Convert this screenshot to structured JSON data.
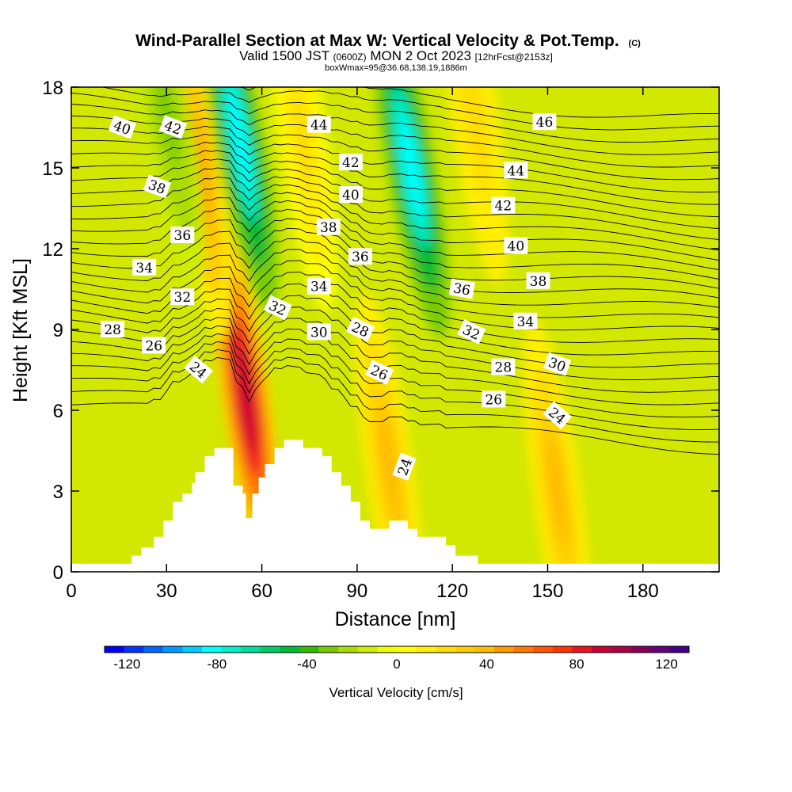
{
  "title": {
    "main": "Wind-Parallel Section at Max W: Vertical Velocity & Pot.Temp.",
    "copyright": "(C)",
    "valid_prefix": "Valid 1500 JST",
    "utc": "(0600Z)",
    "valid_date": "MON 2 Oct 2023",
    "forecast": "[12hrFcst@2153z]",
    "box": "boxWmax=95@36.68,138.19,1886m"
  },
  "colors": {
    "terrain": "#ffffff",
    "contour": "#000000",
    "colorbar": [
      "#0000ff",
      "#0033ff",
      "#0066ff",
      "#0099ff",
      "#00ccff",
      "#00ffff",
      "#00eecc",
      "#00dd99",
      "#00cc66",
      "#00bb33",
      "#33bb00",
      "#77cc00",
      "#aadd00",
      "#ccee00",
      "#eeff00",
      "#ffff00",
      "#ffee00",
      "#ffdd00",
      "#ffcc00",
      "#ffbb00",
      "#ff9900",
      "#ff7700",
      "#ff5500",
      "#ff3300",
      "#ee1122",
      "#cc0033",
      "#aa0044",
      "#880055",
      "#660077",
      "#440088"
    ]
  },
  "chart_data": {
    "type": "heatmap",
    "title": "Wind-Parallel Section at Max W: Vertical Velocity & Pot.Temp.",
    "xlabel": "Distance [nm]",
    "ylabel": "Height [Kft MSL]",
    "xlim": [
      0,
      204
    ],
    "ylim": [
      0,
      18
    ],
    "x_ticks": [
      "0",
      "30",
      "60",
      "90",
      "120",
      "150",
      "180"
    ],
    "y_ticks": [
      "0",
      "3",
      "6",
      "9",
      "12",
      "15",
      "18"
    ],
    "colorbar": {
      "label": "Vertical Velocity [cm/s]",
      "range": [
        -130,
        130
      ],
      "ticks": [
        "-120",
        "-80",
        "-40",
        "0",
        "40",
        "80",
        "120"
      ],
      "tick_values": [
        -120,
        -80,
        -40,
        0,
        40,
        80,
        120
      ]
    },
    "updrafts": [
      {
        "x": 55,
        "y": 6.5,
        "w": 95
      },
      {
        "x": 40,
        "y": 15,
        "w": 45
      },
      {
        "x": 100,
        "y": 4,
        "w": 40
      },
      {
        "x": 153,
        "y": 3,
        "w": 40
      },
      {
        "x": 73,
        "y": 16,
        "w": 20
      },
      {
        "x": 127,
        "y": 17,
        "w": 25
      }
    ],
    "downdrafts": [
      {
        "x": 53,
        "y": 16,
        "w": -85
      },
      {
        "x": 107,
        "y": 15,
        "w": -85
      },
      {
        "x": 30,
        "y": 17,
        "w": -30
      }
    ],
    "terrain": {
      "x": [
        0,
        16,
        19,
        22,
        26,
        29,
        32,
        35,
        38,
        39,
        42,
        45,
        48,
        51,
        54,
        55,
        56,
        57,
        58,
        59,
        61,
        64,
        67,
        70,
        73,
        76,
        79,
        82,
        85,
        88,
        91,
        94,
        97,
        100,
        103,
        106,
        109,
        112,
        115,
        118,
        121,
        124,
        128,
        130,
        204
      ],
      "height": [
        0.3,
        0.3,
        0.6,
        0.9,
        1.3,
        1.9,
        2.6,
        2.9,
        3.3,
        3.7,
        4.3,
        4.6,
        4.6,
        3.2,
        2.9,
        2.0,
        2.0,
        2.9,
        2.9,
        3.5,
        4.0,
        4.6,
        4.9,
        4.9,
        4.6,
        4.6,
        4.3,
        3.7,
        3.2,
        2.6,
        1.9,
        1.6,
        1.6,
        1.9,
        1.9,
        1.6,
        1.3,
        1.3,
        1.3,
        1.0,
        0.6,
        0.6,
        0.3,
        0.3,
        0.3
      ]
    },
    "contour_labels": [
      {
        "text": "40",
        "x": 16,
        "y": 16.5,
        "rot": 20
      },
      {
        "text": "42",
        "x": 32,
        "y": 16.5,
        "rot": 20
      },
      {
        "text": "38",
        "x": 27,
        "y": 14.3,
        "rot": 20
      },
      {
        "text": "36",
        "x": 35,
        "y": 12.5,
        "rot": 0
      },
      {
        "text": "34",
        "x": 23,
        "y": 11.3,
        "rot": 0
      },
      {
        "text": "32",
        "x": 35,
        "y": 10.2,
        "rot": 0
      },
      {
        "text": "28",
        "x": 13,
        "y": 9.0,
        "rot": 0
      },
      {
        "text": "26",
        "x": 26,
        "y": 8.4,
        "rot": 0
      },
      {
        "text": "24",
        "x": 40,
        "y": 7.5,
        "rot": 40
      },
      {
        "text": "44",
        "x": 78,
        "y": 16.6,
        "rot": 0
      },
      {
        "text": "42",
        "x": 88,
        "y": 15.2,
        "rot": 0
      },
      {
        "text": "40",
        "x": 88,
        "y": 14.0,
        "rot": 0
      },
      {
        "text": "38",
        "x": 81,
        "y": 12.8,
        "rot": 0
      },
      {
        "text": "36",
        "x": 91,
        "y": 11.7,
        "rot": 0
      },
      {
        "text": "34",
        "x": 78,
        "y": 10.6,
        "rot": 0
      },
      {
        "text": "32",
        "x": 65,
        "y": 9.8,
        "rot": 25
      },
      {
        "text": "30",
        "x": 78,
        "y": 8.9,
        "rot": 0
      },
      {
        "text": "28",
        "x": 91,
        "y": 9.0,
        "rot": 25
      },
      {
        "text": "26",
        "x": 97,
        "y": 7.4,
        "rot": 25
      },
      {
        "text": "24",
        "x": 105,
        "y": 3.9,
        "rot": -70
      },
      {
        "text": "46",
        "x": 149,
        "y": 16.7,
        "rot": 0
      },
      {
        "text": "44",
        "x": 140,
        "y": 14.9,
        "rot": 0
      },
      {
        "text": "42",
        "x": 136,
        "y": 13.6,
        "rot": 0
      },
      {
        "text": "40",
        "x": 140,
        "y": 12.1,
        "rot": 0
      },
      {
        "text": "38",
        "x": 147,
        "y": 10.8,
        "rot": 0
      },
      {
        "text": "36",
        "x": 123,
        "y": 10.5,
        "rot": 10
      },
      {
        "text": "34",
        "x": 143,
        "y": 9.3,
        "rot": 0
      },
      {
        "text": "32",
        "x": 126,
        "y": 8.9,
        "rot": 25
      },
      {
        "text": "30",
        "x": 153,
        "y": 7.7,
        "rot": 20
      },
      {
        "text": "28",
        "x": 136,
        "y": 7.6,
        "rot": 0
      },
      {
        "text": "26",
        "x": 133,
        "y": 6.4,
        "rot": 0
      },
      {
        "text": "24",
        "x": 153,
        "y": 5.8,
        "rot": 40
      }
    ]
  }
}
